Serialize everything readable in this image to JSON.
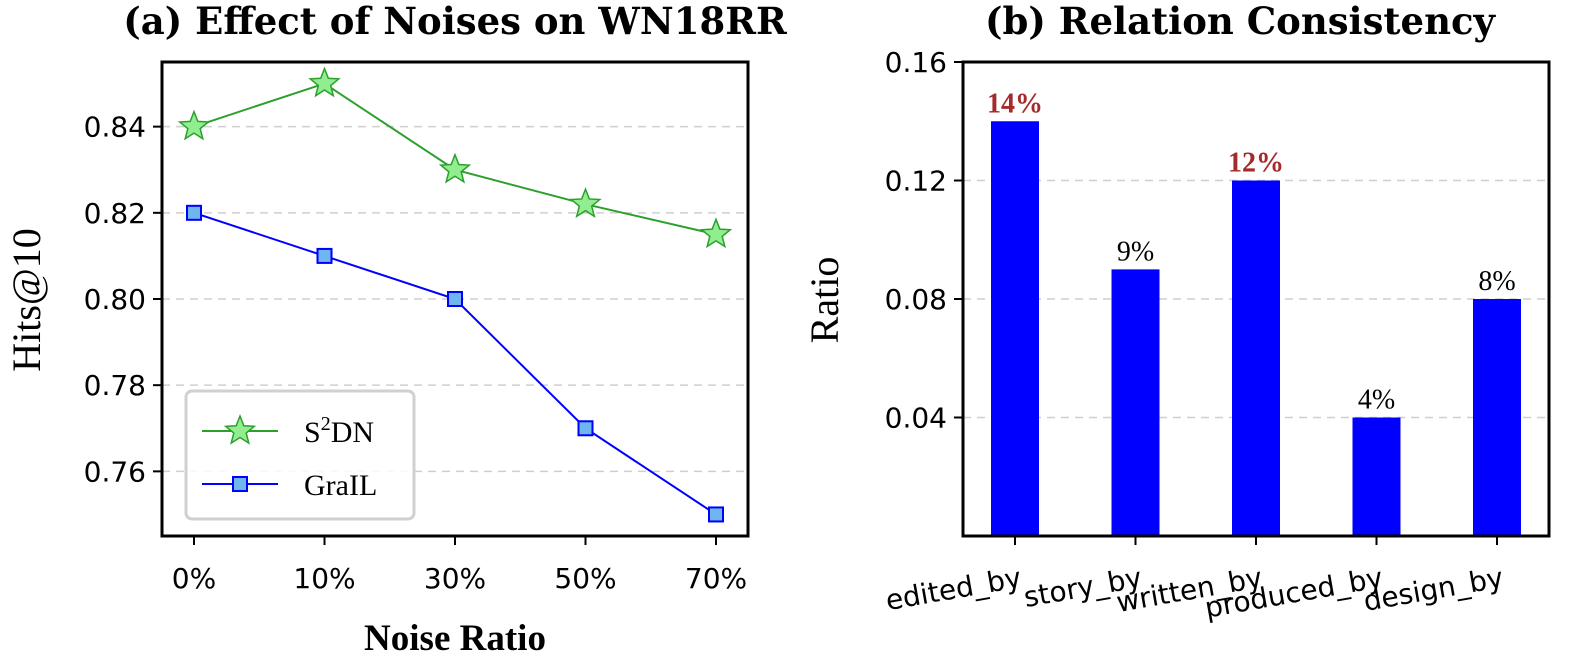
{
  "chart_data": [
    {
      "type": "line",
      "title": "(a) Effect of Noises on WN18RR",
      "xlabel": "Noise Ratio",
      "ylabel": "Hits@10",
      "categories": [
        "0%",
        "10%",
        "30%",
        "50%",
        "70%"
      ],
      "ylim": [
        0.745,
        0.855
      ],
      "yticks": [
        0.76,
        0.78,
        0.8,
        0.82,
        0.84
      ],
      "ytick_labels": [
        "0.76",
        "0.78",
        "0.80",
        "0.82",
        "0.84"
      ],
      "grid": "horizontal dashed",
      "legend_position": "lower-left",
      "series": [
        {
          "name": "S²DN",
          "name_base": "S",
          "name_sup": "2",
          "name_rest": "DN",
          "marker": "star",
          "line_color": "#2ca02c",
          "marker_fill": "#90ee90",
          "values": [
            0.84,
            0.85,
            0.83,
            0.822,
            0.815
          ]
        },
        {
          "name": "GraIL",
          "marker": "square",
          "line_color": "#0000ff",
          "marker_fill": "#6fb6f0",
          "values": [
            0.82,
            0.81,
            0.8,
            0.77,
            0.75
          ]
        }
      ]
    },
    {
      "type": "bar",
      "title": "(b) Relation Consistency",
      "xlabel": "",
      "ylabel": "Ratio",
      "categories": [
        "edited_by",
        "story_by",
        "written_by",
        "produced_by",
        "design_by"
      ],
      "values": [
        0.14,
        0.09,
        0.12,
        0.04,
        0.08
      ],
      "data_labels": [
        "14%",
        "9%",
        "12%",
        "4%",
        "8%"
      ],
      "highlight": [
        true,
        false,
        true,
        false,
        false
      ],
      "ylim": [
        0.0,
        0.16
      ],
      "yticks": [
        0.04,
        0.08,
        0.12,
        0.16
      ],
      "ytick_labels": [
        "0.04",
        "0.08",
        "0.12",
        "0.16"
      ],
      "grid": "horizontal dashed",
      "bar_color": "#0000ff",
      "highlight_color": "#a52a2a",
      "label_color": "#000000"
    }
  ]
}
